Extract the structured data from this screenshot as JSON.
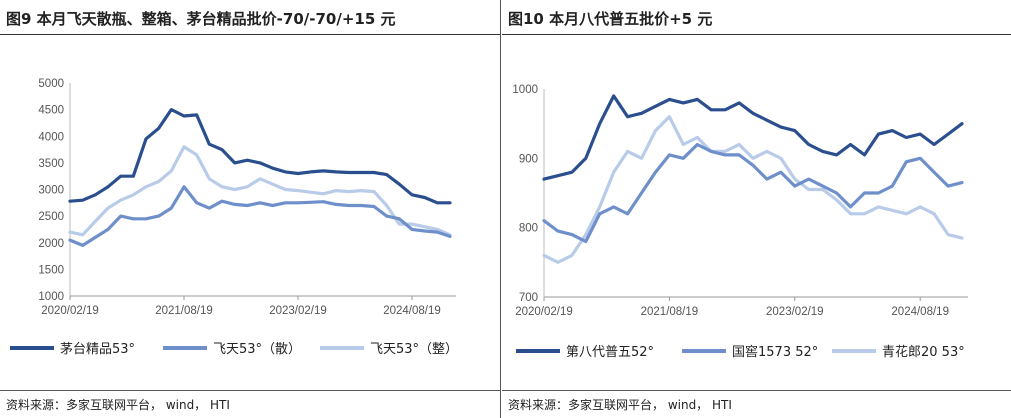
{
  "left": {
    "title": "图9 本月飞天散瓶、整箱、茅台精品批价-70/-70/+15 元",
    "source": "资料来源：多家互联网平台， wind， HTI",
    "chart_data": {
      "type": "line",
      "x_dates": [
        "2020/02/19",
        "2020/04",
        "2020/06",
        "2020/08",
        "2020/10",
        "2020/12",
        "2021/02",
        "2021/04",
        "2021/06",
        "2021/08",
        "2021/10",
        "2021/12",
        "2022/02",
        "2022/04",
        "2022/06",
        "2022/08",
        "2022/10",
        "2022/12",
        "2023/02",
        "2023/04",
        "2023/06",
        "2023/08",
        "2023/10",
        "2023/12",
        "2024/02",
        "2024/04",
        "2024/06",
        "2024/08",
        "2024/10",
        "2024/12",
        "2025/02"
      ],
      "xticks": [
        "2020/02/19",
        "2021/08/19",
        "2023/02/19",
        "2024/08/19"
      ],
      "ylim": [
        1000,
        5000
      ],
      "yticks": [
        1000,
        1500,
        2000,
        2500,
        3000,
        3500,
        4000,
        4500,
        5000
      ],
      "series": [
        {
          "name": "茅台精品53°",
          "color": "#2b4f8e",
          "values": [
            2780,
            2800,
            2900,
            3050,
            3250,
            3250,
            3950,
            4150,
            4500,
            4380,
            4400,
            3850,
            3750,
            3500,
            3550,
            3500,
            3400,
            3330,
            3300,
            3330,
            3350,
            3330,
            3320,
            3320,
            3320,
            3280,
            3100,
            2900,
            2850,
            2750,
            2750
          ]
        },
        {
          "name": "飞天53°（散）",
          "color": "#6f8fcb",
          "values": [
            2050,
            1950,
            2100,
            2250,
            2500,
            2450,
            2450,
            2500,
            2650,
            3050,
            2750,
            2650,
            2780,
            2720,
            2700,
            2750,
            2700,
            2750,
            2750,
            2760,
            2770,
            2720,
            2700,
            2700,
            2680,
            2500,
            2450,
            2250,
            2220,
            2200,
            2120
          ]
        },
        {
          "name": "飞天53°（整）",
          "color": "#b8cbe8",
          "values": [
            2200,
            2150,
            2400,
            2650,
            2800,
            2900,
            3050,
            3150,
            3350,
            3800,
            3650,
            3200,
            3050,
            3000,
            3050,
            3200,
            3100,
            3000,
            2980,
            2950,
            2920,
            2980,
            2960,
            2980,
            2960,
            2700,
            2350,
            2350,
            2300,
            2250,
            2150
          ]
        }
      ]
    }
  },
  "right": {
    "title": "图10 本月八代普五批价+5 元",
    "source": "资料来源：多家互联网平台， wind， HTI",
    "chart_data": {
      "type": "line",
      "x_dates": [
        "2020/02/19",
        "2020/04",
        "2020/06",
        "2020/08",
        "2020/10",
        "2020/12",
        "2021/02",
        "2021/04",
        "2021/06",
        "2021/08",
        "2021/10",
        "2021/12",
        "2022/02",
        "2022/04",
        "2022/06",
        "2022/08",
        "2022/10",
        "2022/12",
        "2023/02",
        "2023/04",
        "2023/06",
        "2023/08",
        "2023/10",
        "2023/12",
        "2024/02",
        "2024/04",
        "2024/06",
        "2024/08",
        "2024/10",
        "2024/12",
        "2025/02"
      ],
      "xticks": [
        "2020/02/19",
        "2021/08/19",
        "2023/02/19",
        "2024/08/19"
      ],
      "ylim": [
        700,
        1000
      ],
      "yticks": [
        700,
        800,
        900,
        1000
      ],
      "series": [
        {
          "name": "第八代普五52°",
          "color": "#2b4f8e",
          "values": [
            870,
            875,
            880,
            900,
            950,
            990,
            960,
            965,
            975,
            985,
            980,
            985,
            970,
            970,
            980,
            965,
            955,
            945,
            940,
            920,
            910,
            905,
            920,
            905,
            935,
            940,
            930,
            935,
            920,
            935,
            950
          ]
        },
        {
          "name": "国窖1573 52°",
          "color": "#6f8fcb",
          "values": [
            810,
            795,
            790,
            780,
            820,
            830,
            820,
            850,
            880,
            905,
            900,
            920,
            910,
            905,
            905,
            890,
            870,
            880,
            860,
            870,
            860,
            850,
            830,
            850,
            850,
            860,
            895,
            900,
            880,
            860,
            865
          ]
        },
        {
          "name": "青花郎20 53°",
          "color": "#b8cbe8",
          "values": [
            760,
            750,
            760,
            790,
            830,
            880,
            910,
            900,
            940,
            960,
            920,
            930,
            910,
            910,
            920,
            900,
            910,
            900,
            870,
            855,
            855,
            840,
            820,
            820,
            830,
            825,
            820,
            830,
            820,
            790,
            785
          ]
        }
      ]
    }
  }
}
